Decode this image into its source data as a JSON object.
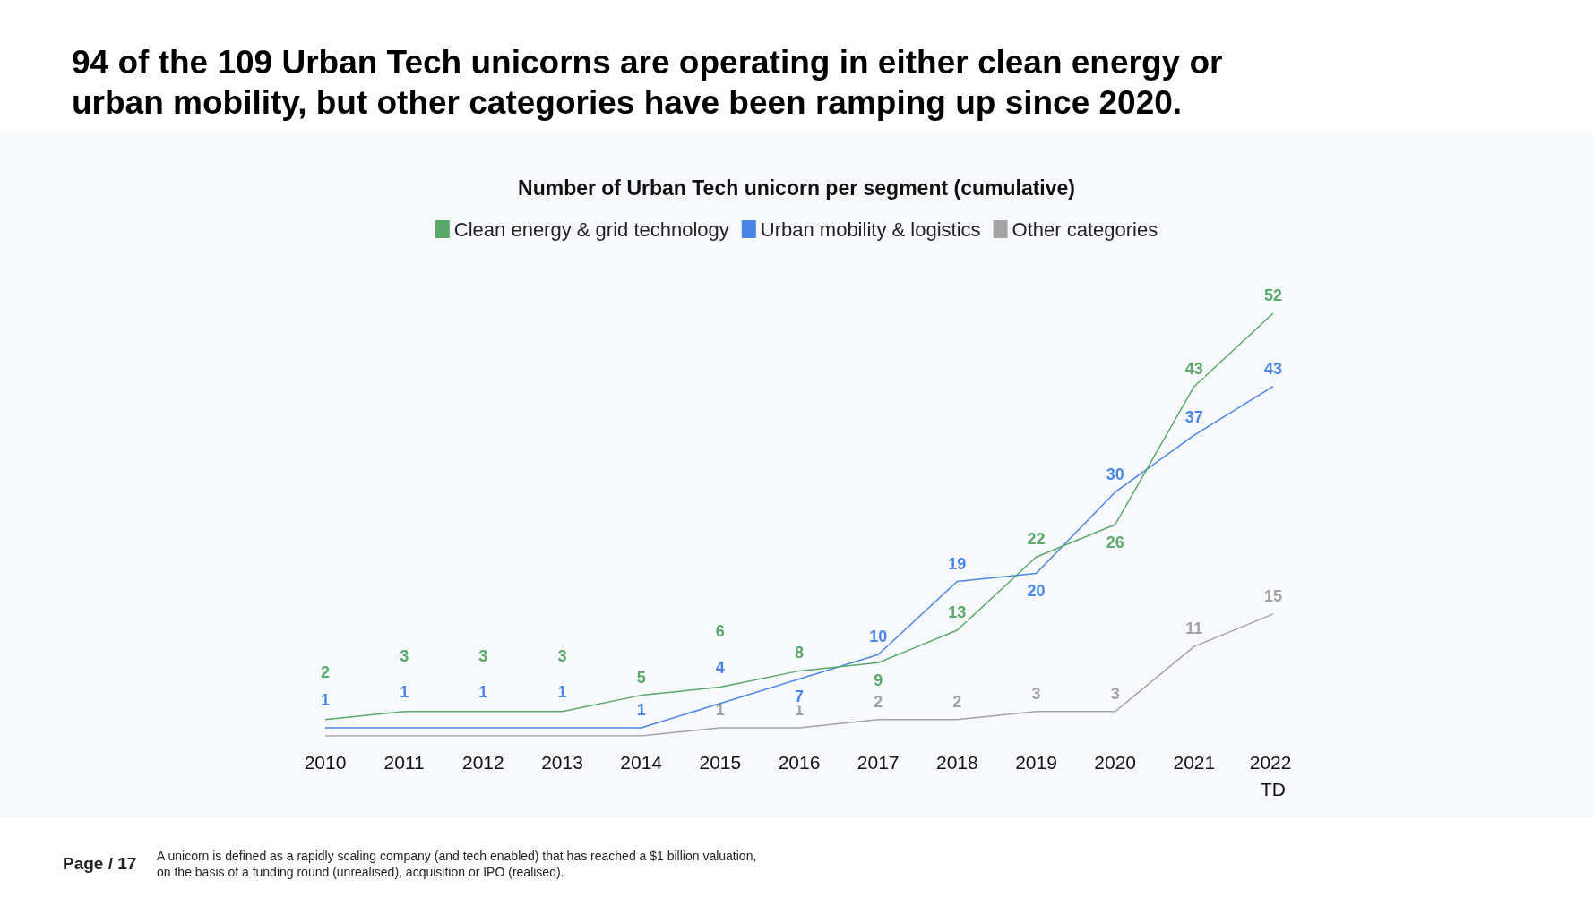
{
  "chart_data": {
    "type": "line",
    "title": "94 of the 109 Urban Tech unicorns are operating in either clean energy or urban mobility, but other categories have been ramping up since 2020.",
    "subtitle": "Number of Urban Tech unicorn per segment (cumulative)",
    "categories": [
      "2010",
      "2011",
      "2012",
      "2013",
      "2014",
      "2015",
      "2016",
      "2017",
      "2018",
      "2019",
      "2020",
      "2021",
      "2022 TD"
    ],
    "series": [
      {
        "name": "Clean energy & grid technology",
        "color": "#5aa86a",
        "values": [
          2,
          3,
          3,
          3,
          5,
          6,
          8,
          9,
          13,
          22,
          26,
          43,
          52
        ],
        "value_labels": [
          "2",
          "3",
          "3",
          "3",
          "5",
          "6",
          "8",
          "9",
          "13",
          "22",
          "26",
          "43",
          "52"
        ]
      },
      {
        "name": "Urban mobility & logistics",
        "color": "#4a86e8",
        "values": [
          1,
          1,
          1,
          1,
          1,
          4,
          7,
          10,
          19,
          20,
          30,
          37,
          43
        ],
        "value_labels": [
          "1",
          "1",
          "1",
          "1",
          "1",
          "4",
          "7",
          "10",
          "19",
          "20",
          "30",
          "37",
          "43"
        ]
      },
      {
        "name": "Other categories",
        "color": "#a3a3a3",
        "values": [
          0,
          0,
          0,
          0,
          0,
          1,
          1,
          2,
          2,
          3,
          3,
          11,
          15
        ],
        "value_labels": [
          null,
          null,
          null,
          null,
          null,
          "1",
          "1",
          "2",
          "2",
          "3",
          "3",
          "11",
          "15"
        ]
      }
    ],
    "legend": "top",
    "grid": false,
    "marker": "none",
    "annotations": [
      "Page / 17",
      "A unicorn is defined as a rapidly scaling company (and tech enabled) that has reached a $1 billion valuation,\non the basis of a funding round (unrealised), acquisition or IPO (realised)."
    ]
  }
}
